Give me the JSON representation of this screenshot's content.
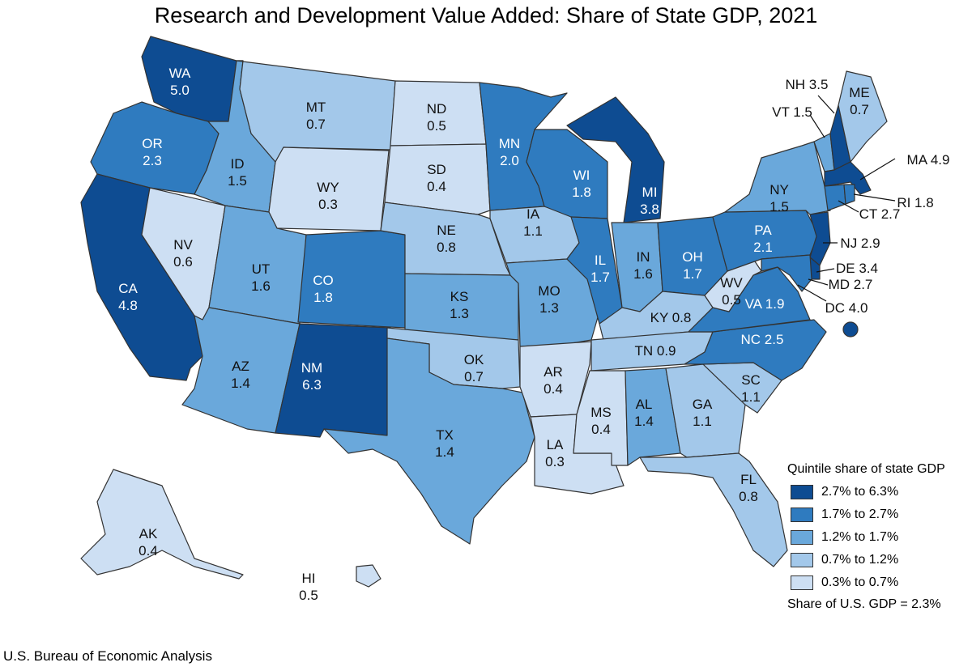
{
  "title": "Research and Development Value Added: Share of State GDP, 2021",
  "source": "U.S. Bureau of Economic Analysis",
  "legend": {
    "title": "Quintile share of state GDP",
    "bins": [
      {
        "label": "2.7% to 6.3%",
        "color": "#0e4c92"
      },
      {
        "label": "1.7% to 2.7%",
        "color": "#2f7bbf"
      },
      {
        "label": "1.2% to 1.7%",
        "color": "#6aa8db"
      },
      {
        "label": "0.7% to 1.2%",
        "color": "#a3c8ea"
      },
      {
        "label": "0.3% to 0.7%",
        "color": "#cddff3"
      }
    ],
    "note": "Share of U.S. GDP = 2.3%"
  },
  "states": [
    {
      "abbr": "WA",
      "value": "5.0",
      "bin": 0
    },
    {
      "abbr": "OR",
      "value": "2.3",
      "bin": 1
    },
    {
      "abbr": "CA",
      "value": "4.8",
      "bin": 0
    },
    {
      "abbr": "NV",
      "value": "0.6",
      "bin": 4
    },
    {
      "abbr": "ID",
      "value": "1.5",
      "bin": 2
    },
    {
      "abbr": "MT",
      "value": "0.7",
      "bin": 3
    },
    {
      "abbr": "WY",
      "value": "0.3",
      "bin": 4
    },
    {
      "abbr": "UT",
      "value": "1.6",
      "bin": 2
    },
    {
      "abbr": "AZ",
      "value": "1.4",
      "bin": 2
    },
    {
      "abbr": "CO",
      "value": "1.8",
      "bin": 1
    },
    {
      "abbr": "NM",
      "value": "6.3",
      "bin": 0
    },
    {
      "abbr": "ND",
      "value": "0.5",
      "bin": 4
    },
    {
      "abbr": "SD",
      "value": "0.4",
      "bin": 4
    },
    {
      "abbr": "NE",
      "value": "0.8",
      "bin": 3
    },
    {
      "abbr": "KS",
      "value": "1.3",
      "bin": 2
    },
    {
      "abbr": "OK",
      "value": "0.7",
      "bin": 3
    },
    {
      "abbr": "TX",
      "value": "1.4",
      "bin": 2
    },
    {
      "abbr": "MN",
      "value": "2.0",
      "bin": 1
    },
    {
      "abbr": "IA",
      "value": "1.1",
      "bin": 3
    },
    {
      "abbr": "MO",
      "value": "1.3",
      "bin": 2
    },
    {
      "abbr": "AR",
      "value": "0.4",
      "bin": 4
    },
    {
      "abbr": "LA",
      "value": "0.3",
      "bin": 4
    },
    {
      "abbr": "WI",
      "value": "1.8",
      "bin": 1
    },
    {
      "abbr": "IL",
      "value": "1.7",
      "bin": 1
    },
    {
      "abbr": "MI",
      "value": "3.8",
      "bin": 0
    },
    {
      "abbr": "IN",
      "value": "1.6",
      "bin": 2
    },
    {
      "abbr": "OH",
      "value": "1.7",
      "bin": 1
    },
    {
      "abbr": "KY",
      "value": "0.8",
      "bin": 3
    },
    {
      "abbr": "TN",
      "value": "0.9",
      "bin": 3
    },
    {
      "abbr": "MS",
      "value": "0.4",
      "bin": 4
    },
    {
      "abbr": "AL",
      "value": "1.4",
      "bin": 2
    },
    {
      "abbr": "GA",
      "value": "1.1",
      "bin": 3
    },
    {
      "abbr": "FL",
      "value": "0.8",
      "bin": 3
    },
    {
      "abbr": "SC",
      "value": "1.1",
      "bin": 3
    },
    {
      "abbr": "NC",
      "value": "2.5",
      "bin": 1
    },
    {
      "abbr": "VA",
      "value": "1.9",
      "bin": 1
    },
    {
      "abbr": "WV",
      "value": "0.5",
      "bin": 4
    },
    {
      "abbr": "PA",
      "value": "2.1",
      "bin": 1
    },
    {
      "abbr": "NY",
      "value": "1.5",
      "bin": 2
    },
    {
      "abbr": "VT",
      "value": "1.5",
      "bin": 2
    },
    {
      "abbr": "NH",
      "value": "3.5",
      "bin": 0
    },
    {
      "abbr": "ME",
      "value": "0.7",
      "bin": 3
    },
    {
      "abbr": "MA",
      "value": "4.9",
      "bin": 0
    },
    {
      "abbr": "RI",
      "value": "1.8",
      "bin": 1
    },
    {
      "abbr": "CT",
      "value": "2.7",
      "bin": 1
    },
    {
      "abbr": "NJ",
      "value": "2.9",
      "bin": 0
    },
    {
      "abbr": "DE",
      "value": "3.4",
      "bin": 0
    },
    {
      "abbr": "MD",
      "value": "2.7",
      "bin": 1
    },
    {
      "abbr": "DC",
      "value": "4.0",
      "bin": 0
    },
    {
      "abbr": "AK",
      "value": "0.4",
      "bin": 4
    },
    {
      "abbr": "HI",
      "value": "0.5",
      "bin": 4
    }
  ]
}
